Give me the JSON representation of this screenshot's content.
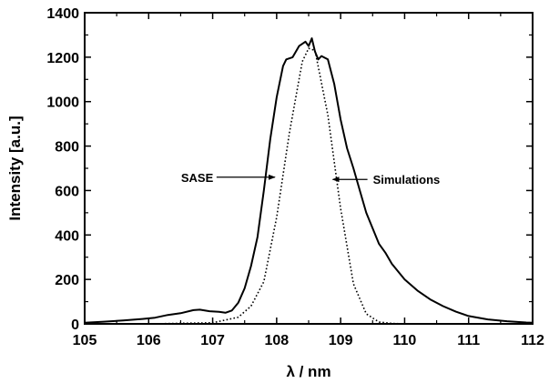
{
  "chart_data": {
    "type": "line",
    "title": "",
    "xlabel": "λ / nm",
    "ylabel": "Intensity  [a.u.]",
    "xlim": [
      105,
      112
    ],
    "ylim": [
      0,
      1400
    ],
    "x_ticks": [
      "105",
      "106",
      "107",
      "108",
      "109",
      "110",
      "111",
      "112"
    ],
    "y_ticks": [
      "0",
      "200",
      "400",
      "600",
      "800",
      "1000",
      "1200",
      "1400"
    ],
    "grid": false,
    "legend": "none",
    "series": [
      {
        "style": "solid",
        "color": "#000000",
        "x": [
          105.0,
          105.3,
          105.6,
          105.9,
          106.1,
          106.3,
          106.5,
          106.7,
          106.8,
          106.95,
          107.1,
          107.2,
          107.3,
          107.4,
          107.5,
          107.6,
          107.7,
          107.8,
          107.9,
          108.0,
          108.1,
          108.15,
          108.25,
          108.35,
          108.45,
          108.5,
          108.55,
          108.6,
          108.65,
          108.7,
          108.8,
          108.9,
          109.0,
          109.1,
          109.2,
          109.3,
          109.4,
          109.5,
          109.6,
          109.7,
          109.8,
          110.0,
          110.2,
          110.4,
          110.6,
          110.8,
          111.0,
          111.3,
          111.6,
          111.9,
          112.0
        ],
        "y": [
          5,
          10,
          15,
          22,
          28,
          40,
          48,
          62,
          64,
          57,
          54,
          50,
          60,
          95,
          160,
          260,
          390,
          600,
          830,
          1020,
          1160,
          1190,
          1200,
          1250,
          1270,
          1250,
          1285,
          1225,
          1190,
          1205,
          1190,
          1080,
          920,
          790,
          700,
          600,
          500,
          430,
          360,
          320,
          270,
          200,
          150,
          110,
          80,
          55,
          35,
          20,
          12,
          6,
          5
        ]
      },
      {
        "style": "dotted",
        "color": "#000000",
        "x": [
          105.0,
          106.0,
          107.0,
          107.4,
          107.6,
          107.8,
          108.0,
          108.2,
          108.4,
          108.5,
          108.6,
          108.8,
          109.0,
          109.2,
          109.4,
          109.6,
          109.8,
          110.0,
          112.0
        ],
        "y": [
          0,
          0,
          5,
          30,
          80,
          190,
          480,
          860,
          1180,
          1240,
          1230,
          940,
          520,
          180,
          45,
          8,
          2,
          0,
          0
        ]
      }
    ],
    "annotations": [
      {
        "text": "SASE",
        "points_to": {
          "x": 108.0,
          "y": 660
        }
      },
      {
        "text": "Simulations",
        "points_to": {
          "x": 108.85,
          "y": 650
        }
      }
    ]
  }
}
